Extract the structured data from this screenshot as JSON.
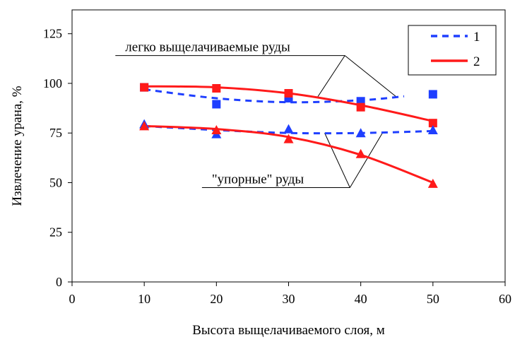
{
  "chart_data": {
    "type": "scatter",
    "xlabel": "Высота выщелачиваемого слоя, м",
    "ylabel": "Извлечение урана, %",
    "xlim": [
      0,
      60
    ],
    "ylim": [
      0,
      137
    ],
    "x_ticks": [
      "0",
      "10",
      "20",
      "30",
      "40",
      "50",
      "60"
    ],
    "y_ticks": [
      "0",
      "25",
      "50",
      "75",
      "100",
      "125"
    ],
    "x_tick_values": [
      0,
      10,
      20,
      30,
      40,
      50,
      60
    ],
    "y_tick_values": [
      0,
      25,
      50,
      75,
      100,
      125
    ],
    "grid": false,
    "legend_position": "top-right",
    "legend": [
      {
        "label": "1",
        "color": "#1f3fff",
        "style": "dashed"
      },
      {
        "label": "2",
        "color": "#ff1a1a",
        "style": "solid"
      }
    ],
    "series": [
      {
        "legend_ref": "1",
        "ore": "легко",
        "marker": "square",
        "color": "#1f3fff",
        "style": "dashed",
        "points": [
          [
            10,
            98
          ],
          [
            20,
            89.5
          ],
          [
            30,
            92.5
          ],
          [
            40,
            91
          ],
          [
            50,
            94.5
          ]
        ],
        "curve": [
          [
            10,
            97
          ],
          [
            20,
            92.5
          ],
          [
            30,
            90.5
          ],
          [
            40,
            91.5
          ],
          [
            46,
            93.5
          ]
        ]
      },
      {
        "legend_ref": "2",
        "ore": "легко",
        "marker": "square",
        "color": "#ff1a1a",
        "style": "solid",
        "points": [
          [
            10,
            98
          ],
          [
            20,
            97.5
          ],
          [
            30,
            95
          ],
          [
            40,
            88
          ],
          [
            50,
            80
          ]
        ],
        "curve": [
          [
            10,
            98.5
          ],
          [
            20,
            98
          ],
          [
            30,
            95
          ],
          [
            40,
            89
          ],
          [
            50,
            81
          ]
        ]
      },
      {
        "legend_ref": "1",
        "ore": "упорные",
        "marker": "triangle",
        "color": "#1f3fff",
        "style": "dashed",
        "points": [
          [
            10,
            79.5
          ],
          [
            20,
            74.5
          ],
          [
            30,
            77
          ],
          [
            40,
            75
          ],
          [
            50,
            76.5
          ]
        ],
        "curve": [
          [
            10,
            78.5
          ],
          [
            20,
            76.5
          ],
          [
            30,
            75
          ],
          [
            40,
            75
          ],
          [
            50,
            76
          ]
        ]
      },
      {
        "legend_ref": "2",
        "ore": "упорные",
        "marker": "triangle",
        "color": "#ff1a1a",
        "style": "solid",
        "points": [
          [
            10,
            78.5
          ],
          [
            20,
            76.5
          ],
          [
            30,
            72
          ],
          [
            40,
            64.5
          ],
          [
            50,
            49.5
          ]
        ],
        "curve": [
          [
            10,
            78.5
          ],
          [
            20,
            77
          ],
          [
            30,
            73
          ],
          [
            40,
            64
          ],
          [
            50,
            50
          ]
        ]
      }
    ],
    "annotations": [
      {
        "text": "легко выщелачиваемые руды",
        "underline_x": [
          6,
          37.8
        ],
        "underline_y": 114,
        "pointers": [
          [
            [
              37.8,
              114
            ],
            [
              34,
              93
            ]
          ],
          [
            [
              37.8,
              114
            ],
            [
              45,
              93
            ]
          ]
        ]
      },
      {
        "text": "\"упорные\" руды",
        "underline_x": [
          18,
          38.5
        ],
        "underline_y": 47.5,
        "pointers": [
          [
            [
              38.5,
              47.5
            ],
            [
              35,
              75
            ]
          ],
          [
            [
              38.5,
              47.5
            ],
            [
              43,
              75
            ]
          ]
        ]
      }
    ]
  }
}
